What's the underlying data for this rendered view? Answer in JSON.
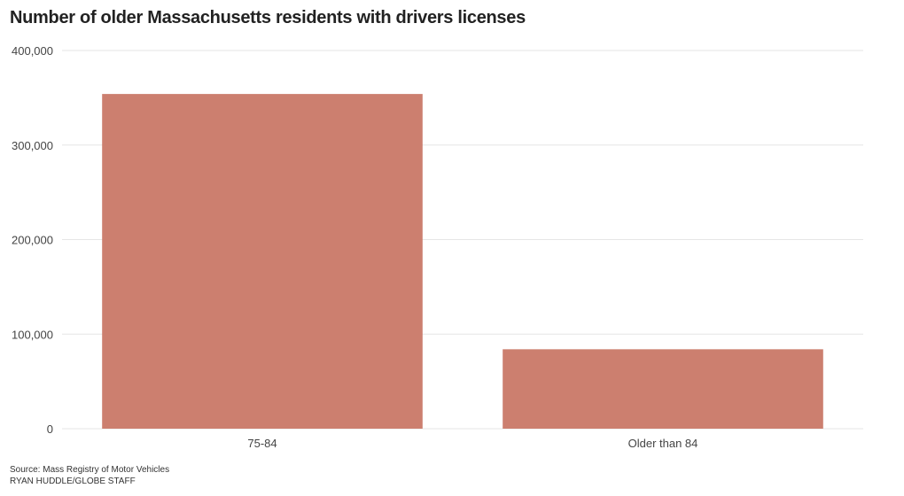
{
  "chart_data": {
    "type": "bar",
    "title": "Number of older Massachusetts residents with drivers licenses",
    "categories": [
      "75-84",
      "Older than 84"
    ],
    "values": [
      354000,
      84000
    ],
    "ylim": [
      0,
      400000
    ],
    "yticks": [
      0,
      100000,
      200000,
      300000,
      400000
    ],
    "ytick_labels": [
      "0",
      "100,000",
      "200,000",
      "300,000",
      "400,000"
    ],
    "xlabel": "",
    "ylabel": "",
    "grid": true,
    "bar_color": "#cc7f6f",
    "grid_color": "#e6e6e6"
  },
  "footer": {
    "source": "Source: Mass Registry of Motor Vehicles",
    "credit": "RYAN HUDDLE/GLOBE STAFF"
  }
}
